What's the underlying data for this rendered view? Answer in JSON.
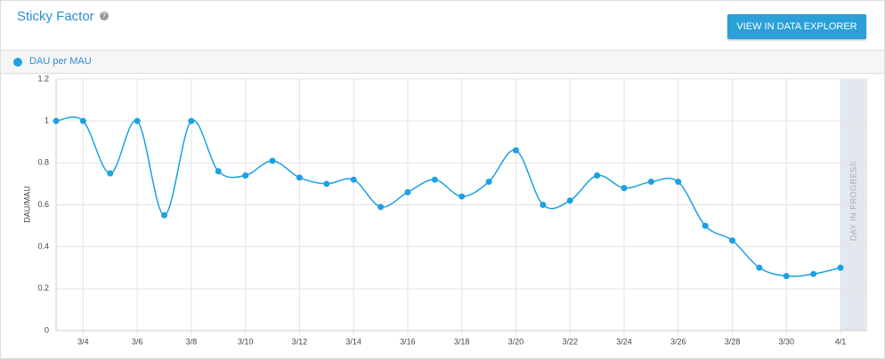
{
  "header": {
    "title": "Sticky Factor",
    "help_icon": "?",
    "button": "VIEW IN DATA EXPLORER"
  },
  "chart_data": {
    "type": "line",
    "y_label": "DAU/MAU",
    "annotation": "DAY IN PROGRESS",
    "categories": [
      null,
      "3/4",
      null,
      "3/6",
      null,
      "3/8",
      null,
      "3/10",
      null,
      "3/12",
      null,
      "3/14",
      null,
      "3/16",
      null,
      "3/18",
      null,
      "3/20",
      null,
      "3/22",
      null,
      "3/24",
      null,
      "3/26",
      null,
      "3/28",
      null,
      "3/30",
      null,
      "4/1"
    ],
    "series": [
      {
        "name": "DAU per MAU",
        "color": "#1ba1e2",
        "values": [
          1,
          1,
          0.75,
          1,
          0.55,
          1,
          0.76,
          0.74,
          0.81,
          0.73,
          0.7,
          0.72,
          0.59,
          0.66,
          0.72,
          0.64,
          0.71,
          0.86,
          0.6,
          0.62,
          0.74,
          0.68,
          0.71,
          0.71,
          0.5,
          0.43,
          0.3,
          0.26,
          0.27,
          0.3
        ]
      }
    ],
    "ylim": [
      0,
      1.2
    ],
    "yticks": [
      0,
      0.2,
      0.4,
      0.6,
      0.8,
      1,
      1.2
    ],
    "grid": true
  }
}
